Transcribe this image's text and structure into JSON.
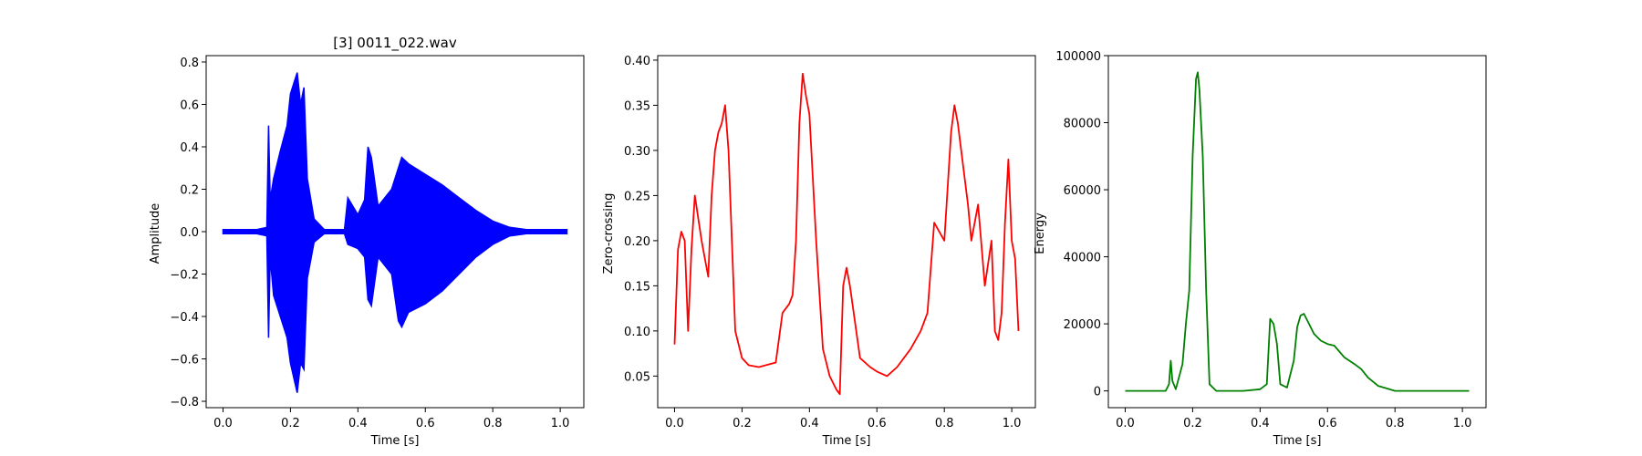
{
  "chart_data": [
    {
      "type": "line",
      "title": "[3] 0011_022.wav",
      "xlabel": "Time [s]",
      "ylabel": "Amplitude",
      "color": "#0000ff",
      "xlim": [
        -0.05,
        1.07
      ],
      "ylim": [
        -0.83,
        0.83
      ],
      "xticks": [
        0.0,
        0.2,
        0.4,
        0.6,
        0.8,
        1.0
      ],
      "xtick_labels": [
        "0.0",
        "0.2",
        "0.4",
        "0.6",
        "0.8",
        "1.0"
      ],
      "yticks": [
        0.8,
        0.6,
        0.4,
        0.2,
        0.0,
        -0.2,
        -0.4,
        -0.6,
        -0.8
      ],
      "ytick_labels": [
        "0.8",
        "0.6",
        "0.4",
        "0.2",
        "0.0",
        "−0.2",
        "−0.4",
        "−0.6",
        "−0.8"
      ],
      "envelope": {
        "t": [
          0.0,
          0.1,
          0.13,
          0.135,
          0.14,
          0.15,
          0.17,
          0.19,
          0.2,
          0.22,
          0.23,
          0.24,
          0.25,
          0.27,
          0.3,
          0.36,
          0.37,
          0.4,
          0.42,
          0.43,
          0.44,
          0.46,
          0.5,
          0.52,
          0.53,
          0.55,
          0.6,
          0.65,
          0.7,
          0.75,
          0.8,
          0.85,
          0.9,
          1.0,
          1.02
        ],
        "upper": [
          0.01,
          0.01,
          0.02,
          0.5,
          0.15,
          0.25,
          0.38,
          0.5,
          0.65,
          0.75,
          0.6,
          0.68,
          0.25,
          0.06,
          0.01,
          0.01,
          0.16,
          0.08,
          0.15,
          0.4,
          0.35,
          0.12,
          0.2,
          0.3,
          0.35,
          0.32,
          0.27,
          0.22,
          0.16,
          0.1,
          0.05,
          0.02,
          0.01,
          0.01,
          0.01
        ],
        "lower": [
          -0.01,
          -0.01,
          -0.02,
          -0.5,
          -0.12,
          -0.3,
          -0.4,
          -0.5,
          -0.62,
          -0.76,
          -0.62,
          -0.65,
          -0.22,
          -0.05,
          -0.01,
          -0.01,
          -0.06,
          -0.08,
          -0.12,
          -0.32,
          -0.35,
          -0.12,
          -0.2,
          -0.42,
          -0.45,
          -0.38,
          -0.34,
          -0.28,
          -0.2,
          -0.12,
          -0.06,
          -0.02,
          -0.01,
          -0.01,
          -0.01
        ]
      }
    },
    {
      "type": "line",
      "title": "",
      "xlabel": "Time [s]",
      "ylabel": "Zero-crossing",
      "color": "#ff0000",
      "xlim": [
        -0.05,
        1.07
      ],
      "ylim": [
        0.015,
        0.405
      ],
      "xticks": [
        0.0,
        0.2,
        0.4,
        0.6,
        0.8,
        1.0
      ],
      "xtick_labels": [
        "0.0",
        "0.2",
        "0.4",
        "0.6",
        "0.8",
        "1.0"
      ],
      "yticks": [
        0.4,
        0.35,
        0.3,
        0.25,
        0.2,
        0.15,
        0.1,
        0.05
      ],
      "ytick_labels": [
        "0.40",
        "0.35",
        "0.30",
        "0.25",
        "0.20",
        "0.15",
        "0.10",
        "0.05"
      ],
      "x": [
        0.0,
        0.01,
        0.02,
        0.03,
        0.04,
        0.05,
        0.06,
        0.08,
        0.1,
        0.11,
        0.12,
        0.13,
        0.14,
        0.15,
        0.16,
        0.18,
        0.2,
        0.22,
        0.25,
        0.28,
        0.3,
        0.32,
        0.34,
        0.35,
        0.36,
        0.37,
        0.38,
        0.39,
        0.4,
        0.42,
        0.44,
        0.46,
        0.48,
        0.49,
        0.5,
        0.51,
        0.52,
        0.55,
        0.58,
        0.6,
        0.63,
        0.66,
        0.7,
        0.73,
        0.75,
        0.77,
        0.8,
        0.82,
        0.83,
        0.84,
        0.85,
        0.87,
        0.88,
        0.9,
        0.92,
        0.94,
        0.95,
        0.96,
        0.97,
        0.98,
        0.99,
        1.0,
        1.01,
        1.02
      ],
      "y": [
        0.085,
        0.19,
        0.21,
        0.2,
        0.1,
        0.19,
        0.25,
        0.2,
        0.16,
        0.25,
        0.3,
        0.32,
        0.33,
        0.35,
        0.3,
        0.1,
        0.07,
        0.062,
        0.06,
        0.063,
        0.065,
        0.12,
        0.13,
        0.14,
        0.2,
        0.33,
        0.385,
        0.36,
        0.34,
        0.2,
        0.08,
        0.05,
        0.035,
        0.03,
        0.15,
        0.17,
        0.15,
        0.07,
        0.06,
        0.055,
        0.05,
        0.06,
        0.08,
        0.1,
        0.12,
        0.22,
        0.2,
        0.32,
        0.35,
        0.33,
        0.3,
        0.24,
        0.2,
        0.24,
        0.15,
        0.2,
        0.1,
        0.09,
        0.12,
        0.22,
        0.29,
        0.2,
        0.18,
        0.1
      ]
    },
    {
      "type": "line",
      "title": "",
      "xlabel": "Time [s]",
      "ylabel": "Energy",
      "color": "#008000",
      "xlim": [
        -0.05,
        1.07
      ],
      "ylim": [
        -5000,
        100000
      ],
      "xticks": [
        0.0,
        0.2,
        0.4,
        0.6,
        0.8,
        1.0
      ],
      "xtick_labels": [
        "0.0",
        "0.2",
        "0.4",
        "0.6",
        "0.8",
        "1.0"
      ],
      "yticks": [
        100000,
        80000,
        60000,
        40000,
        20000,
        0
      ],
      "ytick_labels": [
        "100000",
        "80000",
        "60000",
        "40000",
        "20000",
        "0"
      ],
      "x": [
        0.0,
        0.1,
        0.12,
        0.13,
        0.135,
        0.14,
        0.15,
        0.17,
        0.18,
        0.19,
        0.2,
        0.21,
        0.215,
        0.22,
        0.23,
        0.24,
        0.25,
        0.27,
        0.3,
        0.35,
        0.4,
        0.42,
        0.43,
        0.44,
        0.45,
        0.46,
        0.48,
        0.5,
        0.51,
        0.52,
        0.53,
        0.54,
        0.56,
        0.58,
        0.6,
        0.62,
        0.65,
        0.68,
        0.7,
        0.72,
        0.75,
        0.8,
        0.85,
        0.9,
        1.02
      ],
      "y": [
        0,
        0,
        0,
        2000,
        9000,
        3000,
        500,
        8000,
        20000,
        30000,
        70000,
        93000,
        95000,
        90000,
        70000,
        30000,
        2000,
        0,
        0,
        0,
        500,
        2000,
        21500,
        20000,
        14000,
        2000,
        1000,
        9000,
        19000,
        22500,
        23000,
        21000,
        17000,
        15000,
        14000,
        13500,
        10000,
        8000,
        6500,
        4000,
        1500,
        0,
        0,
        0,
        0
      ]
    }
  ]
}
